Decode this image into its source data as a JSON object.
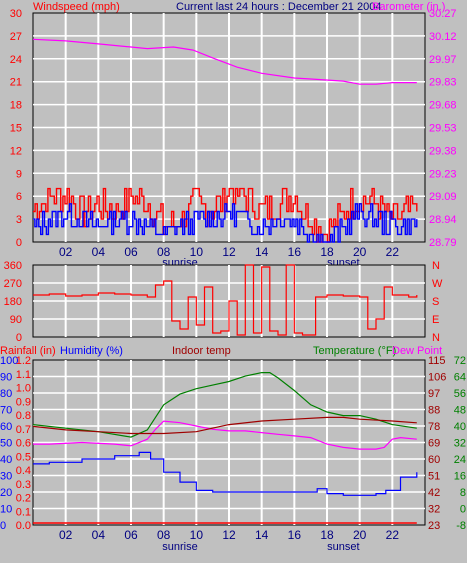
{
  "header": {
    "left_title": "Windspeed (mph)",
    "center_title": "Current last 24 hours : December 21 2004",
    "right_title": "Barometer (in.)"
  },
  "colors": {
    "background": "#c0c0c0",
    "plot_bg": "#c0c0c0",
    "grid": "#ffffff",
    "red": "#ff0000",
    "blue": "#0000ff",
    "magenta": "#ff00ff",
    "green": "#008000",
    "darkred": "#a00000",
    "navy": "#000080"
  },
  "chart_data": [
    {
      "type": "line",
      "name": "wind-barometer",
      "x_ticks": [
        "02",
        "04",
        "06",
        "08",
        "10",
        "12",
        "14",
        "16",
        "18",
        "20",
        "22"
      ],
      "x_sublabels": [
        "sunrise",
        "sunset"
      ],
      "left_axis": {
        "label": "Windspeed (mph)",
        "ticks": [
          "30",
          "27",
          "24",
          "21",
          "18",
          "15",
          "12",
          "9",
          "6",
          "3",
          "0"
        ],
        "ylim": [
          0,
          30
        ]
      },
      "right_axis": {
        "label": "Barometer (in.)",
        "ticks": [
          "30.27",
          "30.12",
          "29.97",
          "29.83",
          "29.68",
          "29.53",
          "29.38",
          "29.23",
          "29.09",
          "28.94",
          "28.79"
        ],
        "ylim": [
          28.79,
          30.27
        ]
      },
      "series": [
        {
          "axis": "right",
          "color": "#ff00ff",
          "x": [
            0,
            2,
            4,
            6,
            7,
            8.6,
            9.8,
            11,
            12.5,
            14,
            16,
            17.5,
            19,
            20,
            21,
            22,
            23.5
          ],
          "y": [
            30.1,
            30.09,
            30.07,
            30.05,
            30.04,
            30.05,
            30.03,
            29.98,
            29.92,
            29.88,
            29.85,
            29.84,
            29.83,
            29.81,
            29.81,
            29.82,
            29.82
          ]
        },
        {
          "axis": "left",
          "color": "#ff0000",
          "style": "gust",
          "x": [
            0,
            1,
            2,
            3,
            4,
            5,
            6,
            7,
            8,
            9,
            10,
            11,
            12,
            13,
            14,
            15,
            16,
            17,
            18,
            19,
            20,
            21,
            22,
            23,
            23.5
          ],
          "y": [
            4,
            6,
            6,
            4,
            5,
            4,
            6,
            5,
            2,
            3,
            5,
            4,
            7,
            6,
            4,
            5,
            6,
            3,
            1,
            4,
            6,
            5,
            3,
            4,
            4
          ]
        },
        {
          "axis": "left",
          "color": "#0000ff",
          "style": "avg",
          "x": [
            0,
            1,
            2,
            3,
            4,
            5,
            6,
            7,
            8,
            9,
            10,
            11,
            12,
            13,
            14,
            15,
            16,
            17,
            18,
            19,
            20,
            21,
            22,
            23,
            23.5
          ],
          "y": [
            2,
            3,
            4,
            3,
            2,
            3,
            3,
            2,
            1,
            2,
            3,
            3,
            4,
            3,
            2,
            3,
            3,
            1,
            0,
            2,
            4,
            3,
            2,
            2,
            3
          ]
        }
      ]
    },
    {
      "type": "line",
      "name": "wind-direction",
      "x_ticks": [
        "02",
        "04",
        "06",
        "08",
        "10",
        "12",
        "14",
        "16",
        "18",
        "20",
        "22"
      ],
      "left_axis": {
        "ticks": [
          "360",
          "270",
          "180",
          "90",
          "0"
        ],
        "ylim": [
          0,
          360
        ]
      },
      "right_axis": {
        "ticks": [
          "N",
          "W",
          "S",
          "E",
          "N"
        ]
      },
      "series": [
        {
          "color": "#ff0000",
          "x": [
            0,
            1,
            2,
            3,
            4,
            5,
            6,
            7,
            7.5,
            8,
            8.5,
            9,
            9.5,
            10,
            10.5,
            11,
            11.5,
            12,
            12.5,
            13,
            13.5,
            14,
            14.5,
            15,
            15.5,
            16,
            16.5,
            17,
            17.3,
            18,
            19,
            20,
            20.5,
            21,
            21.5,
            22,
            23,
            23.5
          ],
          "y": [
            210,
            215,
            205,
            210,
            220,
            215,
            210,
            200,
            260,
            280,
            80,
            40,
            200,
            60,
            250,
            20,
            30,
            180,
            10,
            360,
            20,
            350,
            30,
            10,
            360,
            20,
            10,
            10,
            200,
            210,
            205,
            200,
            40,
            90,
            250,
            210,
            200,
            210
          ]
        }
      ]
    },
    {
      "type": "line",
      "name": "humidity-temperature",
      "x_ticks": [
        "02",
        "04",
        "06",
        "08",
        "10",
        "12",
        "14",
        "16",
        "18",
        "20",
        "22"
      ],
      "x_sublabels": [
        "sunrise",
        "sunset"
      ],
      "left_axis_1": {
        "label": "Rainfall (in)",
        "ticks": [
          "1.2",
          "1.1",
          "1.0",
          "0.9",
          "0.8",
          "0.7",
          "0.6",
          "0.5",
          "0.4",
          "0.3",
          "0.2",
          "0.1",
          "0.0"
        ]
      },
      "left_axis_2": {
        "label": "Humidity (%)",
        "ticks": [
          "100",
          "90",
          "80",
          "70",
          "60",
          "50",
          "40",
          "30",
          "20",
          "10",
          "0"
        ],
        "ylim": [
          0,
          100
        ]
      },
      "center_label": "Indoor temp",
      "right_axis_1": {
        "label": "Temperature (°F)",
        "ticks": [
          "115",
          "106",
          "97",
          "88",
          "78",
          "69",
          "60",
          "51",
          "42",
          "32",
          "23"
        ],
        "ylim": [
          23,
          115
        ]
      },
      "right_axis_2": {
        "label": "Dew Point",
        "ticks": [
          "72",
          "64",
          "56",
          "48",
          "40",
          "32",
          "24",
          "16",
          "8",
          "0",
          "-8"
        ]
      },
      "series": [
        {
          "color": "#0000ff",
          "x": [
            0,
            1,
            3,
            5,
            6.5,
            7.2,
            8,
            9,
            10,
            11,
            13,
            15,
            16,
            17,
            17.4,
            18,
            19,
            20,
            21,
            21.6,
            22.5,
            23.5
          ],
          "y": [
            37,
            38,
            40,
            42,
            44,
            40,
            32,
            26,
            21,
            20,
            20,
            20,
            20,
            20,
            22,
            19,
            18,
            18,
            19,
            21,
            29,
            32
          ]
        },
        {
          "color": "#ff00ff",
          "x": [
            0,
            1,
            3,
            5,
            6,
            7,
            7.5,
            8,
            9,
            10,
            11,
            12,
            13,
            14,
            15,
            16,
            17,
            18,
            19,
            20,
            21,
            21.5,
            22,
            22.5,
            23.5
          ],
          "y": [
            49,
            49,
            50,
            49,
            48,
            52,
            58,
            63,
            62,
            60,
            58,
            57,
            57,
            56,
            55,
            54,
            53,
            49,
            47,
            46,
            46,
            47,
            52,
            53,
            52
          ]
        },
        {
          "color": "#008000",
          "x": [
            0,
            2,
            4,
            6,
            7,
            8,
            9,
            10,
            11,
            12,
            13,
            14,
            14.5,
            15,
            16,
            17,
            18,
            19,
            20,
            21,
            22,
            23.5
          ],
          "y": [
            79,
            77,
            75,
            72,
            76,
            90,
            96,
            99,
            101,
            103,
            106,
            108,
            108,
            105,
            98,
            90,
            86,
            84,
            84,
            82,
            79,
            77
          ]
        },
        {
          "color": "#a00000",
          "x": [
            0,
            2,
            4,
            6,
            8,
            10,
            12,
            14,
            16,
            18,
            19,
            20,
            22,
            23.5
          ],
          "y": [
            78,
            76,
            75,
            74,
            74,
            75,
            79,
            81,
            82,
            83,
            83,
            82,
            81,
            80
          ]
        },
        {
          "color": "#ff0000",
          "axis": "rain",
          "x": [
            0,
            23.5
          ],
          "y": [
            0.0,
            0.0
          ]
        }
      ]
    }
  ]
}
